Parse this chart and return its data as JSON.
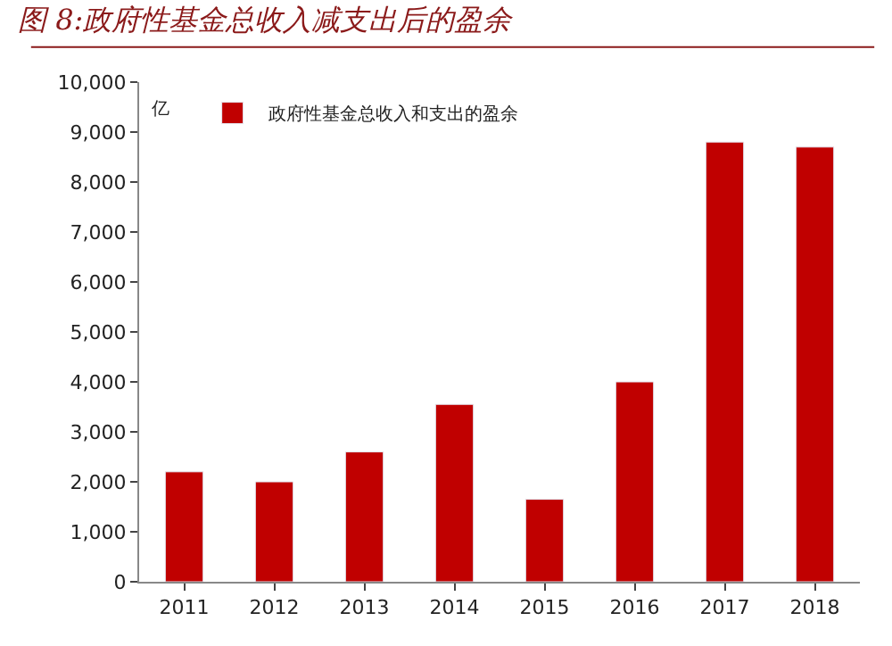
{
  "chart_data": {
    "type": "bar",
    "title": "图 8:政府性基金总收入减支出后的盈余",
    "ylabel": "亿",
    "categories": [
      "2011",
      "2012",
      "2013",
      "2014",
      "2015",
      "2016",
      "2017",
      "2018"
    ],
    "series": [
      {
        "name": "政府性基金总收入和支出的盈余",
        "color": "#c00000",
        "values": [
          2200,
          2000,
          2600,
          3550,
          1650,
          4000,
          8800,
          8700
        ]
      }
    ],
    "ylim": [
      0,
      10000
    ],
    "yticks": [
      0,
      {
        "value": 1000,
        "label": "1,000"
      },
      {
        "value": 2000,
        "label": "2,000"
      },
      {
        "value": 3000,
        "label": "3,000"
      },
      {
        "value": 4000,
        "label": "4,000"
      },
      {
        "value": 5000,
        "label": "5,000"
      },
      {
        "value": 6000,
        "label": "6,000"
      },
      {
        "value": 7000,
        "label": "7,000"
      },
      {
        "value": 8000,
        "label": "8,000"
      },
      {
        "value": 9000,
        "label": "9,000"
      },
      {
        "value": 10000,
        "label": "10,000"
      }
    ],
    "legend": "top left"
  }
}
